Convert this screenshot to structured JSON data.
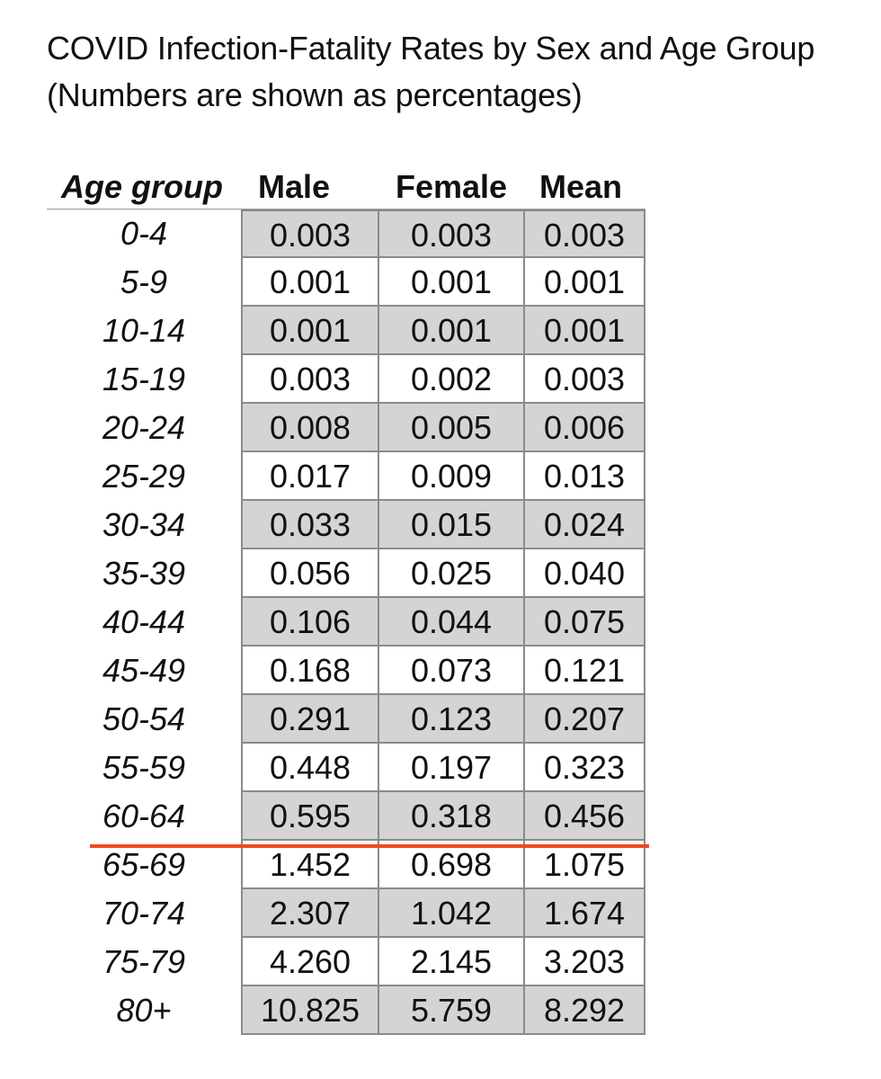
{
  "title": {
    "line1": "COVID Infection-Fatality Rates by Sex and Age Group",
    "line2": "(Numbers are shown as percentages)"
  },
  "headers": {
    "age_group": "Age group",
    "male": "Male",
    "female": "Female",
    "mean": "Mean"
  },
  "rows": [
    {
      "age": "0-4",
      "male": "0.003",
      "female": "0.003",
      "mean": "0.003"
    },
    {
      "age": "5-9",
      "male": "0.001",
      "female": "0.001",
      "mean": "0.001"
    },
    {
      "age": "10-14",
      "male": "0.001",
      "female": "0.001",
      "mean": "0.001"
    },
    {
      "age": "15-19",
      "male": "0.003",
      "female": "0.002",
      "mean": "0.003"
    },
    {
      "age": "20-24",
      "male": "0.008",
      "female": "0.005",
      "mean": "0.006"
    },
    {
      "age": "25-29",
      "male": "0.017",
      "female": "0.009",
      "mean": "0.013"
    },
    {
      "age": "30-34",
      "male": "0.033",
      "female": "0.015",
      "mean": "0.024"
    },
    {
      "age": "35-39",
      "male": "0.056",
      "female": "0.025",
      "mean": "0.040"
    },
    {
      "age": "40-44",
      "male": "0.106",
      "female": "0.044",
      "mean": "0.075"
    },
    {
      "age": "45-49",
      "male": "0.168",
      "female": "0.073",
      "mean": "0.121"
    },
    {
      "age": "50-54",
      "male": "0.291",
      "female": "0.123",
      "mean": "0.207"
    },
    {
      "age": "55-59",
      "male": "0.448",
      "female": "0.197",
      "mean": "0.323"
    },
    {
      "age": "60-64",
      "male": "0.595",
      "female": "0.318",
      "mean": "0.456"
    },
    {
      "age": "65-69",
      "male": "1.452",
      "female": "0.698",
      "mean": "1.075"
    },
    {
      "age": "70-74",
      "male": "2.307",
      "female": "1.042",
      "mean": "1.674"
    },
    {
      "age": "75-79",
      "male": "4.260",
      "female": "2.145",
      "mean": "3.203"
    },
    {
      "age": "80+",
      "male": "10.825",
      "female": "5.759",
      "mean": "8.292"
    }
  ],
  "colors": {
    "shaded_row": "#d4d4d4",
    "divider_line": "#f04a23",
    "border": "#8a8a8a"
  }
}
